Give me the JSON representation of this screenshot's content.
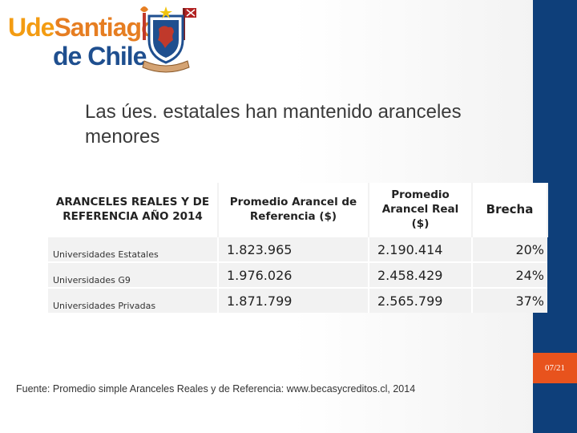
{
  "logo": {
    "line1_a": "Ude",
    "line1_b": "Santiago",
    "line2": "de Chile",
    "colors": {
      "ude": "#f39c12",
      "santiago": "#e67e22",
      "de_chile": "#1f4f8f"
    }
  },
  "slide": {
    "title": "Las úes. estatales han mantenido aranceles menores",
    "page_number": "07/21",
    "source": "Fuente: Promedio simple Aranceles Reales y de Referencia: www.becasycreditos.cl, 2014"
  },
  "table": {
    "headers": [
      "ARANCELES REALES Y DE REFERENCIA AÑO 2014",
      "Promedio Arancel de Referencia ($)",
      "Promedio Arancel Real ($)",
      "Brecha"
    ],
    "rows": [
      {
        "label": "Universidades Estatales",
        "referencia": "1.823.965",
        "real": "2.190.414",
        "brecha": "20%"
      },
      {
        "label": "Universidades G9",
        "referencia": "1.976.026",
        "real": "2.458.429",
        "brecha": "24%"
      },
      {
        "label": "Universidades Privadas",
        "referencia": "1.871.799",
        "real": "2.565.799",
        "brecha": "37%"
      }
    ]
  },
  "colors": {
    "sidebar": "#0e3f7a",
    "page_tab": "#e8531d"
  }
}
